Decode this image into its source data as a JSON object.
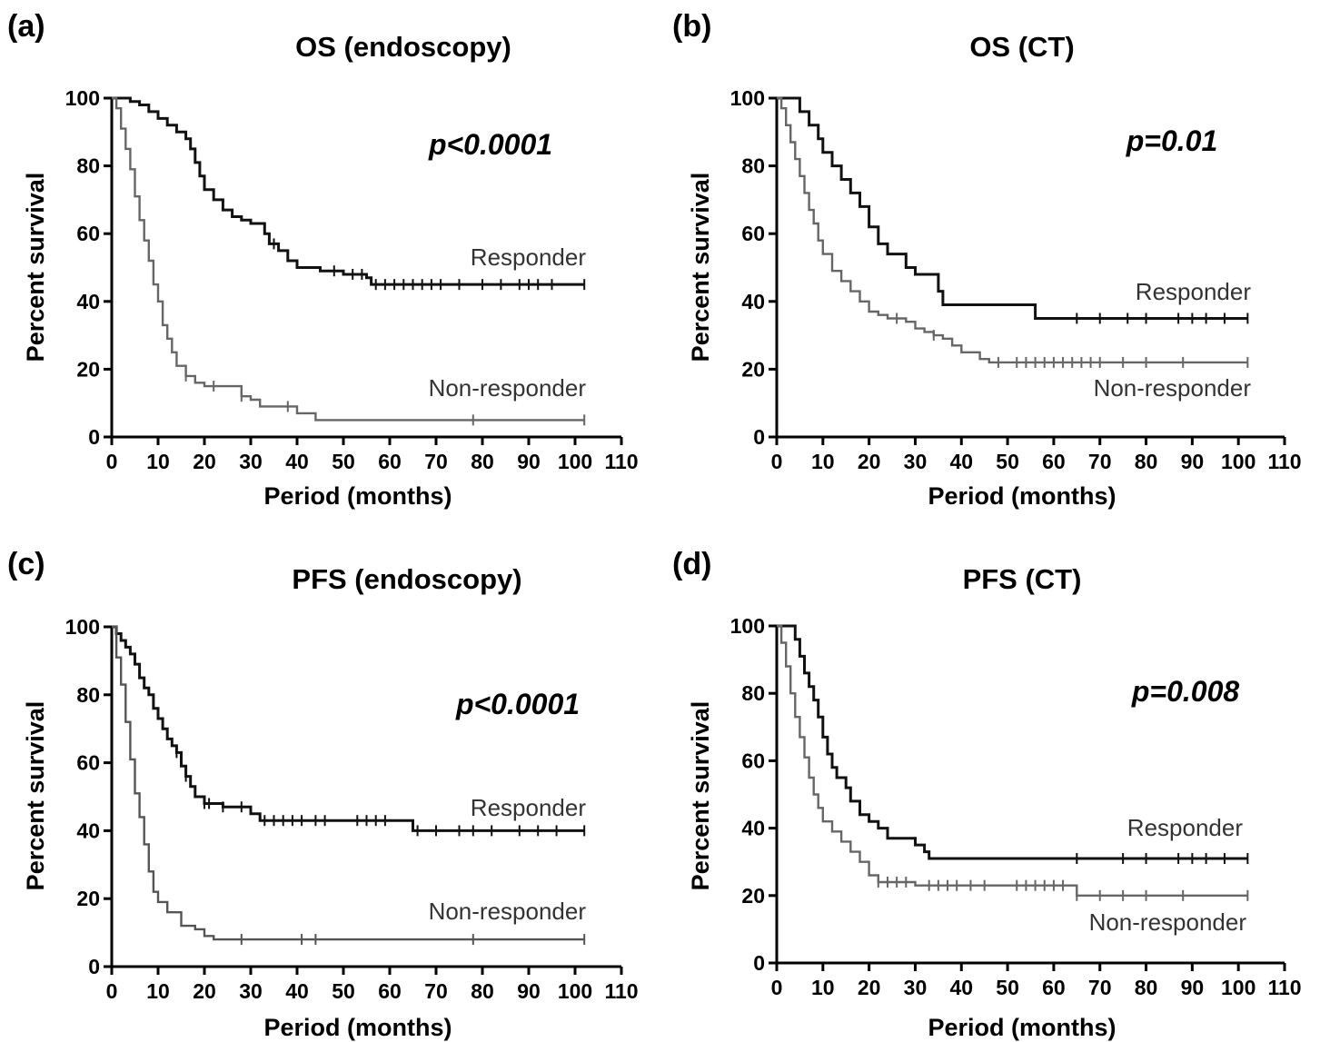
{
  "chart_data": [
    {
      "type": "line",
      "panel": "(a)",
      "title": "OS (endoscopy)",
      "xlabel": "Period (months)",
      "ylabel": "Percent survival",
      "xlim": [
        0,
        110
      ],
      "ylim": [
        0,
        100
      ],
      "xticks": [
        "0",
        "10",
        "20",
        "30",
        "40",
        "50",
        "60",
        "70",
        "80",
        "90",
        "100",
        "110"
      ],
      "yticks": [
        "0",
        "20",
        "40",
        "60",
        "80",
        "100"
      ],
      "annotation": "p<0.0001",
      "grid": false,
      "legend": "inline labels next to curves",
      "series": [
        {
          "name": "Responder",
          "color": "#111111",
          "points": [
            [
              0,
              100
            ],
            [
              2,
              100
            ],
            [
              4,
              99
            ],
            [
              6,
              98
            ],
            [
              8,
              96
            ],
            [
              10,
              94
            ],
            [
              12,
              92
            ],
            [
              14,
              90
            ],
            [
              16,
              88
            ],
            [
              17,
              85
            ],
            [
              18,
              81
            ],
            [
              19,
              77
            ],
            [
              20,
              73
            ],
            [
              22,
              70
            ],
            [
              24,
              67
            ],
            [
              26,
              65
            ],
            [
              28,
              64
            ],
            [
              30,
              63
            ],
            [
              32,
              63
            ],
            [
              33,
              60
            ],
            [
              34,
              57
            ],
            [
              36,
              55
            ],
            [
              38,
              52
            ],
            [
              40,
              50
            ],
            [
              45,
              49
            ],
            [
              50,
              48
            ],
            [
              55,
              47
            ],
            [
              56,
              45
            ],
            [
              102,
              45
            ]
          ],
          "censor_x": [
            35,
            48,
            52,
            54,
            57,
            59,
            61,
            63,
            65,
            67,
            69,
            71,
            75,
            80,
            84,
            88,
            90,
            92,
            95,
            102
          ]
        },
        {
          "name": "Non-responder",
          "color": "#666666",
          "points": [
            [
              0,
              100
            ],
            [
              1,
              97
            ],
            [
              2,
              91
            ],
            [
              3,
              85
            ],
            [
              4,
              79
            ],
            [
              5,
              71
            ],
            [
              6,
              64
            ],
            [
              7,
              58
            ],
            [
              8,
              52
            ],
            [
              9,
              45
            ],
            [
              10,
              40
            ],
            [
              11,
              33
            ],
            [
              12,
              29
            ],
            [
              13,
              25
            ],
            [
              14,
              21
            ],
            [
              16,
              18
            ],
            [
              18,
              16
            ],
            [
              20,
              15
            ],
            [
              28,
              12
            ],
            [
              30,
              11
            ],
            [
              32,
              9
            ],
            [
              40,
              7
            ],
            [
              44,
              5
            ],
            [
              102,
              5
            ]
          ],
          "censor_x": [
            16,
            22,
            28,
            38,
            78,
            102
          ]
        }
      ]
    },
    {
      "type": "line",
      "panel": "(b)",
      "title": "OS (CT)",
      "xlabel": "Period (months)",
      "ylabel": "Percent survival",
      "xlim": [
        0,
        110
      ],
      "ylim": [
        0,
        100
      ],
      "xticks": [
        "0",
        "10",
        "20",
        "30",
        "40",
        "50",
        "60",
        "70",
        "80",
        "90",
        "100",
        "110"
      ],
      "yticks": [
        "0",
        "20",
        "40",
        "60",
        "80",
        "100"
      ],
      "annotation": "p=0.01",
      "grid": false,
      "legend": "inline labels next to curves",
      "series": [
        {
          "name": "Responder",
          "color": "#111111",
          "points": [
            [
              0,
              100
            ],
            [
              3,
              100
            ],
            [
              5,
              96
            ],
            [
              7,
              92
            ],
            [
              9,
              88
            ],
            [
              10,
              84
            ],
            [
              12,
              80
            ],
            [
              14,
              76
            ],
            [
              16,
              72
            ],
            [
              18,
              68
            ],
            [
              20,
              62
            ],
            [
              22,
              57
            ],
            [
              24,
              54
            ],
            [
              28,
              50
            ],
            [
              30,
              48
            ],
            [
              34,
              48
            ],
            [
              35,
              43
            ],
            [
              36,
              39
            ],
            [
              55,
              39
            ],
            [
              56,
              35
            ],
            [
              102,
              35
            ]
          ],
          "censor_x": [
            65,
            70,
            76,
            80,
            87,
            90,
            93,
            97,
            102
          ]
        },
        {
          "name": "Non-responder",
          "color": "#666666",
          "points": [
            [
              0,
              100
            ],
            [
              1,
              97
            ],
            [
              2,
              92
            ],
            [
              3,
              87
            ],
            [
              4,
              82
            ],
            [
              5,
              77
            ],
            [
              6,
              72
            ],
            [
              7,
              67
            ],
            [
              8,
              63
            ],
            [
              9,
              58
            ],
            [
              10,
              54
            ],
            [
              12,
              49
            ],
            [
              14,
              46
            ],
            [
              16,
              43
            ],
            [
              18,
              40
            ],
            [
              20,
              37
            ],
            [
              22,
              36
            ],
            [
              24,
              35
            ],
            [
              28,
              34
            ],
            [
              30,
              32
            ],
            [
              32,
              31
            ],
            [
              34,
              30
            ],
            [
              36,
              29
            ],
            [
              38,
              27
            ],
            [
              40,
              25
            ],
            [
              44,
              23
            ],
            [
              46,
              22
            ],
            [
              102,
              22
            ]
          ],
          "censor_x": [
            26,
            34,
            48,
            52,
            54,
            56,
            58,
            60,
            62,
            64,
            66,
            68,
            70,
            75,
            80,
            88,
            102
          ]
        }
      ]
    },
    {
      "type": "line",
      "panel": "(c)",
      "title": "PFS (endoscopy)",
      "xlabel": "Period (months)",
      "ylabel": "Percent survival",
      "xlim": [
        0,
        110
      ],
      "ylim": [
        0,
        100
      ],
      "xticks": [
        "0",
        "10",
        "20",
        "30",
        "40",
        "50",
        "60",
        "70",
        "80",
        "90",
        "100",
        "110"
      ],
      "yticks": [
        "0",
        "20",
        "40",
        "60",
        "80",
        "100"
      ],
      "annotation": "p<0.0001",
      "grid": false,
      "legend": "inline labels next to curves",
      "series": [
        {
          "name": "Responder",
          "color": "#111111",
          "points": [
            [
              0,
              100
            ],
            [
              1,
              98
            ],
            [
              2,
              96
            ],
            [
              3,
              94
            ],
            [
              4,
              92
            ],
            [
              5,
              89
            ],
            [
              6,
              85
            ],
            [
              7,
              82
            ],
            [
              8,
              80
            ],
            [
              9,
              76
            ],
            [
              10,
              73
            ],
            [
              11,
              70
            ],
            [
              12,
              67
            ],
            [
              13,
              65
            ],
            [
              14,
              63
            ],
            [
              15,
              59
            ],
            [
              16,
              56
            ],
            [
              17,
              53
            ],
            [
              18,
              50
            ],
            [
              20,
              48
            ],
            [
              24,
              47
            ],
            [
              30,
              45
            ],
            [
              32,
              43
            ],
            [
              64,
              43
            ],
            [
              65,
              40
            ],
            [
              102,
              40
            ]
          ],
          "censor_x": [
            14,
            16,
            20,
            21,
            24,
            28,
            33,
            35,
            37,
            39,
            41,
            44,
            46,
            53,
            55,
            57,
            59,
            66,
            70,
            75,
            78,
            82,
            88,
            92,
            96,
            102
          ]
        },
        {
          "name": "Non-responder",
          "color": "#555555",
          "points": [
            [
              0,
              100
            ],
            [
              1,
              91
            ],
            [
              2,
              83
            ],
            [
              3,
              72
            ],
            [
              4,
              61
            ],
            [
              5,
              51
            ],
            [
              6,
              44
            ],
            [
              7,
              36
            ],
            [
              8,
              28
            ],
            [
              9,
              22
            ],
            [
              10,
              19
            ],
            [
              12,
              16
            ],
            [
              15,
              12
            ],
            [
              18,
              11
            ],
            [
              20,
              9
            ],
            [
              22,
              8
            ],
            [
              102,
              8
            ]
          ],
          "censor_x": [
            28,
            41,
            44,
            78,
            102
          ]
        }
      ]
    },
    {
      "type": "line",
      "panel": "(d)",
      "title": "PFS (CT)",
      "xlabel": "Period (months)",
      "ylabel": "Percent survival",
      "xlim": [
        0,
        110
      ],
      "ylim": [
        0,
        100
      ],
      "xticks": [
        "0",
        "10",
        "20",
        "30",
        "40",
        "50",
        "60",
        "70",
        "80",
        "90",
        "100",
        "110"
      ],
      "yticks": [
        "0",
        "20",
        "40",
        "60",
        "80",
        "100"
      ],
      "annotation": "p=0.008",
      "grid": false,
      "legend": "inline labels next to curves",
      "series": [
        {
          "name": "Responder",
          "color": "#111111",
          "points": [
            [
              0,
              100
            ],
            [
              3,
              100
            ],
            [
              4,
              96
            ],
            [
              5,
              91
            ],
            [
              6,
              86
            ],
            [
              7,
              82
            ],
            [
              8,
              78
            ],
            [
              9,
              73
            ],
            [
              10,
              67
            ],
            [
              11,
              62
            ],
            [
              12,
              58
            ],
            [
              13,
              55
            ],
            [
              15,
              52
            ],
            [
              16,
              48
            ],
            [
              18,
              44
            ],
            [
              20,
              42
            ],
            [
              22,
              40
            ],
            [
              24,
              37
            ],
            [
              28,
              37
            ],
            [
              30,
              35
            ],
            [
              32,
              33
            ],
            [
              33,
              31
            ],
            [
              102,
              31
            ]
          ],
          "censor_x": [
            65,
            75,
            80,
            87,
            90,
            93,
            97,
            102
          ]
        },
        {
          "name": "Non-responder",
          "color": "#666666",
          "points": [
            [
              0,
              100
            ],
            [
              1,
              95
            ],
            [
              2,
              88
            ],
            [
              3,
              80
            ],
            [
              4,
              73
            ],
            [
              5,
              67
            ],
            [
              6,
              61
            ],
            [
              7,
              55
            ],
            [
              8,
              50
            ],
            [
              9,
              46
            ],
            [
              10,
              42
            ],
            [
              12,
              39
            ],
            [
              14,
              36
            ],
            [
              16,
              33
            ],
            [
              18,
              30
            ],
            [
              20,
              26
            ],
            [
              22,
              24
            ],
            [
              30,
              23
            ],
            [
              64,
              23
            ],
            [
              65,
              20
            ],
            [
              102,
              20
            ]
          ],
          "censor_x": [
            22,
            24,
            26,
            28,
            33,
            35,
            37,
            39,
            42,
            45,
            52,
            54,
            56,
            58,
            60,
            62,
            65,
            70,
            75,
            80,
            88,
            102
          ]
        }
      ]
    }
  ]
}
